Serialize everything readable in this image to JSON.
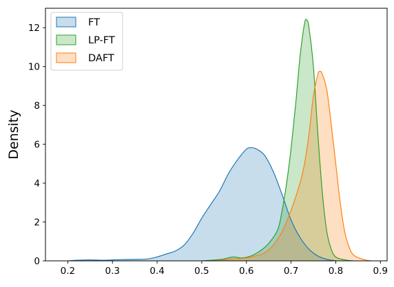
{
  "chart_data": {
    "type": "area",
    "title": "",
    "xlabel": "",
    "ylabel": "Density",
    "xlim": [
      0.15,
      0.915
    ],
    "ylim": [
      0,
      13
    ],
    "xticks": [
      "0.2",
      "0.3",
      "0.4",
      "0.5",
      "0.6",
      "0.7",
      "0.8",
      "0.9"
    ],
    "yticks": [
      "0",
      "2",
      "4",
      "6",
      "8",
      "10",
      "12"
    ],
    "grid": false,
    "legend": "top-left",
    "series": [
      {
        "name": "FT",
        "color": "#1f77b4",
        "points": [
          [
            0.2,
            0.0
          ],
          [
            0.22,
            0.03
          ],
          [
            0.25,
            0.05
          ],
          [
            0.28,
            0.03
          ],
          [
            0.3,
            0.05
          ],
          [
            0.33,
            0.07
          ],
          [
            0.36,
            0.08
          ],
          [
            0.38,
            0.1
          ],
          [
            0.4,
            0.2
          ],
          [
            0.42,
            0.35
          ],
          [
            0.44,
            0.5
          ],
          [
            0.46,
            0.8
          ],
          [
            0.48,
            1.4
          ],
          [
            0.5,
            2.2
          ],
          [
            0.52,
            2.9
          ],
          [
            0.54,
            3.6
          ],
          [
            0.56,
            4.5
          ],
          [
            0.58,
            5.2
          ],
          [
            0.6,
            5.75
          ],
          [
            0.61,
            5.82
          ],
          [
            0.62,
            5.78
          ],
          [
            0.64,
            5.45
          ],
          [
            0.66,
            4.6
          ],
          [
            0.68,
            3.4
          ],
          [
            0.7,
            2.1
          ],
          [
            0.72,
            1.2
          ],
          [
            0.74,
            0.6
          ],
          [
            0.76,
            0.25
          ],
          [
            0.78,
            0.08
          ],
          [
            0.8,
            0.0
          ]
        ]
      },
      {
        "name": "LP-FT",
        "color": "#2ca02c",
        "points": [
          [
            0.5,
            0.0
          ],
          [
            0.53,
            0.05
          ],
          [
            0.55,
            0.1
          ],
          [
            0.57,
            0.2
          ],
          [
            0.59,
            0.15
          ],
          [
            0.61,
            0.25
          ],
          [
            0.63,
            0.5
          ],
          [
            0.65,
            0.9
          ],
          [
            0.67,
            1.6
          ],
          [
            0.68,
            2.6
          ],
          [
            0.69,
            4.0
          ],
          [
            0.7,
            5.8
          ],
          [
            0.71,
            8.0
          ],
          [
            0.72,
            10.5
          ],
          [
            0.73,
            12.2
          ],
          [
            0.735,
            12.4
          ],
          [
            0.74,
            12.0
          ],
          [
            0.75,
            10.0
          ],
          [
            0.76,
            6.5
          ],
          [
            0.77,
            3.5
          ],
          [
            0.78,
            1.5
          ],
          [
            0.79,
            0.6
          ],
          [
            0.8,
            0.2
          ],
          [
            0.82,
            0.05
          ],
          [
            0.84,
            0.0
          ]
        ]
      },
      {
        "name": "DAFT",
        "color": "#ff7f0e",
        "points": [
          [
            0.53,
            0.0
          ],
          [
            0.55,
            0.05
          ],
          [
            0.57,
            0.1
          ],
          [
            0.6,
            0.15
          ],
          [
            0.62,
            0.25
          ],
          [
            0.64,
            0.4
          ],
          [
            0.66,
            0.8
          ],
          [
            0.68,
            1.5
          ],
          [
            0.7,
            2.6
          ],
          [
            0.72,
            4.0
          ],
          [
            0.73,
            5.0
          ],
          [
            0.74,
            6.5
          ],
          [
            0.75,
            8.5
          ],
          [
            0.76,
            9.6
          ],
          [
            0.765,
            9.75
          ],
          [
            0.77,
            9.6
          ],
          [
            0.78,
            8.8
          ],
          [
            0.79,
            7.0
          ],
          [
            0.8,
            5.0
          ],
          [
            0.81,
            3.0
          ],
          [
            0.82,
            1.5
          ],
          [
            0.83,
            0.7
          ],
          [
            0.84,
            0.3
          ],
          [
            0.86,
            0.08
          ],
          [
            0.88,
            0.0
          ]
        ]
      }
    ]
  }
}
